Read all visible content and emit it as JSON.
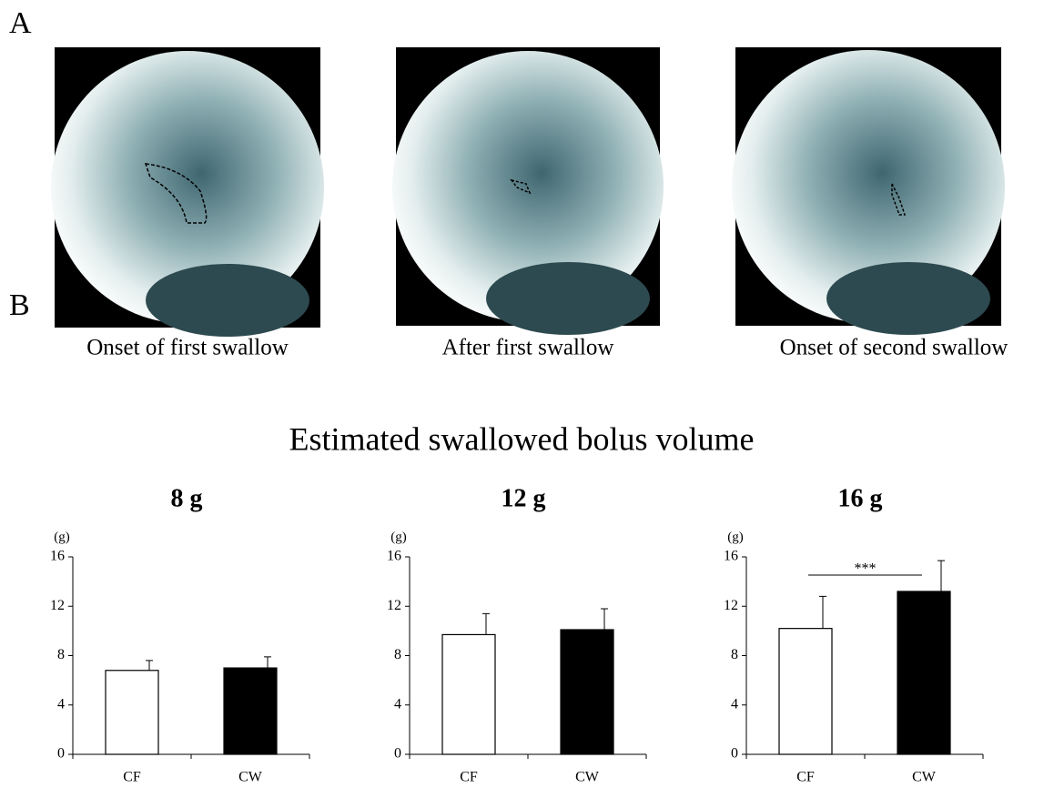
{
  "panel_labels": [
    "A",
    "B"
  ],
  "images": [
    {
      "caption": "Onset of first swallow"
    },
    {
      "caption": "After first swallow"
    },
    {
      "caption": "Onset of second swallow"
    }
  ],
  "figure_title": "Estimated swallowed bolus volume",
  "chart_data": [
    {
      "type": "bar",
      "title": "8 g",
      "y_label": "(g)",
      "categories": [
        "CF",
        "CW"
      ],
      "values": [
        6.8,
        7.0
      ],
      "errors": [
        0.8,
        0.9
      ],
      "colors": [
        "#ffffff",
        "#000000"
      ],
      "ylim": [
        0,
        16
      ],
      "yticks": [
        0,
        4,
        8,
        12,
        16
      ]
    },
    {
      "type": "bar",
      "title": "12 g",
      "y_label": "(g)",
      "categories": [
        "CF",
        "CW"
      ],
      "values": [
        9.7,
        10.1
      ],
      "errors": [
        1.7,
        1.7
      ],
      "colors": [
        "#ffffff",
        "#000000"
      ],
      "ylim": [
        0,
        16
      ],
      "yticks": [
        0,
        4,
        8,
        12,
        16
      ]
    },
    {
      "type": "bar",
      "title": "16 g",
      "y_label": "(g)",
      "categories": [
        "CF",
        "CW"
      ],
      "values": [
        10.2,
        13.2
      ],
      "errors": [
        2.6,
        2.5
      ],
      "colors": [
        "#ffffff",
        "#000000"
      ],
      "ylim": [
        0,
        16
      ],
      "yticks": [
        0,
        4,
        8,
        12,
        16
      ],
      "annotation": "***"
    }
  ]
}
